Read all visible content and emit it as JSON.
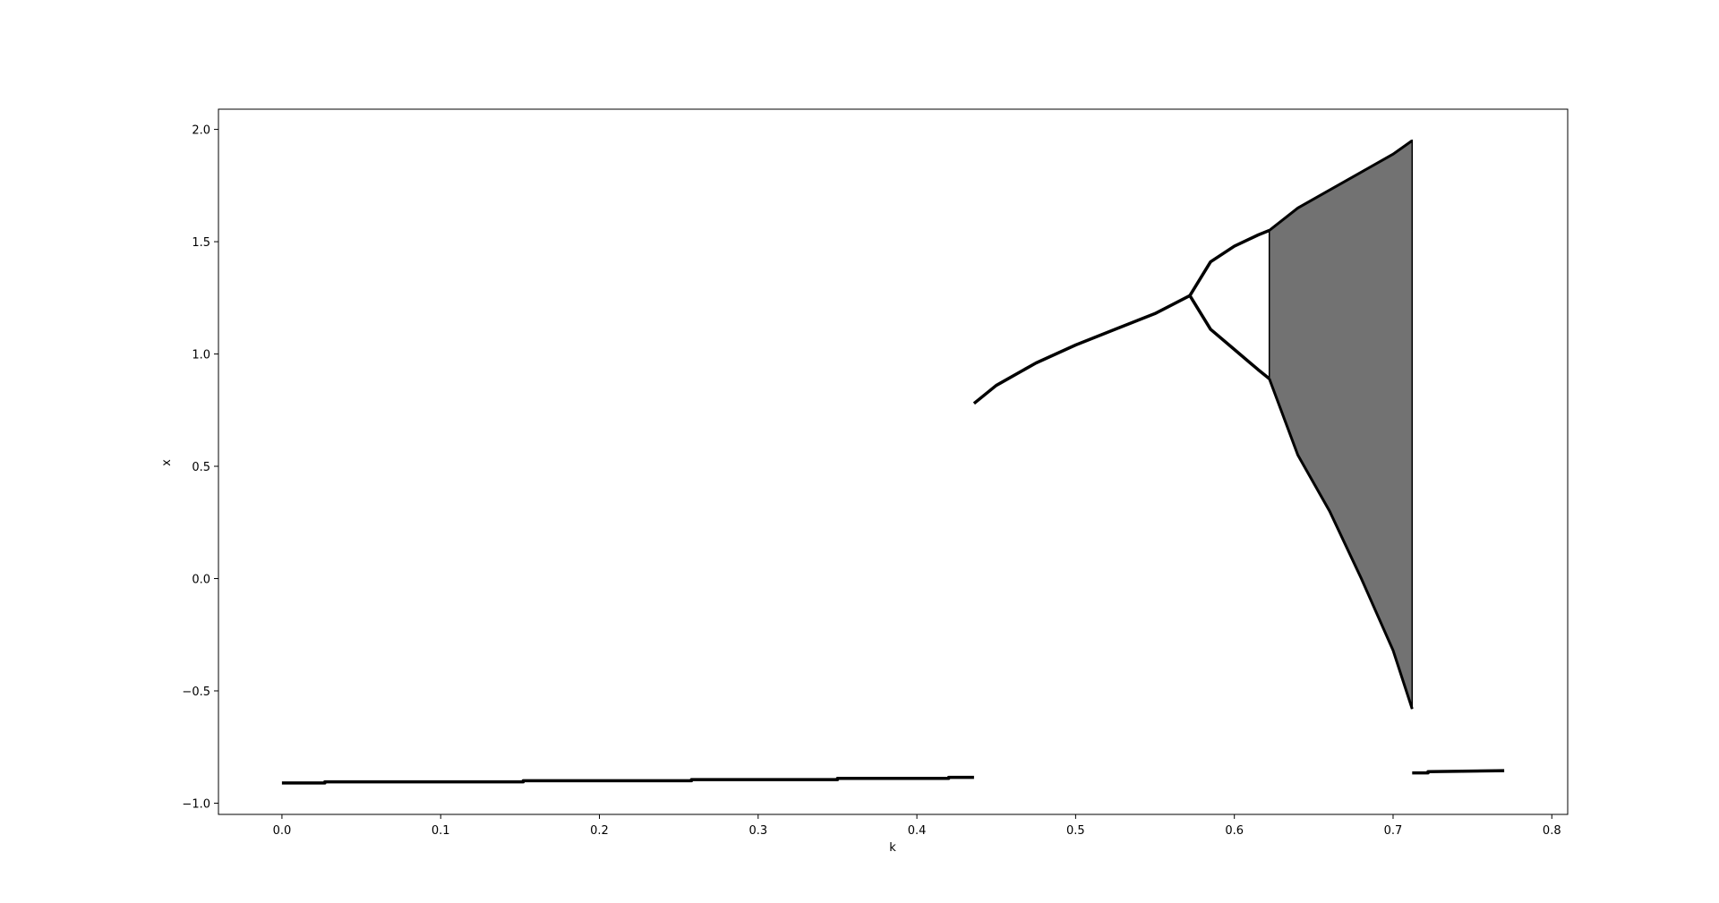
{
  "chart_data": {
    "type": "scatter",
    "title": "",
    "xlabel": "k",
    "ylabel": "x",
    "xlim": [
      -0.04,
      0.81
    ],
    "ylim": [
      -1.05,
      2.09
    ],
    "grid": false,
    "legend": "none",
    "marker_color": "#000000",
    "x_ticks": [
      0.0,
      0.1,
      0.2,
      0.3,
      0.4,
      0.5,
      0.6,
      0.7,
      0.8
    ],
    "x_tick_labels": [
      "0.0",
      "0.1",
      "0.2",
      "0.3",
      "0.4",
      "0.5",
      "0.6",
      "0.7",
      "0.8"
    ],
    "y_ticks": [
      -1.0,
      -0.5,
      0.0,
      0.5,
      1.0,
      1.5,
      2.0
    ],
    "y_tick_labels": [
      "−1.0",
      "−0.5",
      "0.0",
      "0.5",
      "1.0",
      "1.5",
      "2.0"
    ],
    "series": [
      {
        "description_of_regime": "low fixed point",
        "x": [
          0.0,
          0.027,
          0.027,
          0.1,
          0.152,
          0.152,
          0.2,
          0.258,
          0.258,
          0.3,
          0.35,
          0.35,
          0.4,
          0.42,
          0.42,
          0.436
        ],
        "y": [
          -0.91,
          -0.91,
          -0.905,
          -0.905,
          -0.905,
          -0.9,
          -0.9,
          -0.9,
          -0.895,
          -0.895,
          -0.895,
          -0.89,
          -0.89,
          -0.89,
          -0.885,
          -0.885
        ]
      },
      {
        "description_of_regime": "upper fixed point",
        "x": [
          0.436,
          0.45,
          0.475,
          0.5,
          0.525,
          0.55,
          0.572
        ],
        "y": [
          0.78,
          0.86,
          0.96,
          1.04,
          1.11,
          1.18,
          1.26
        ]
      },
      {
        "description_of_regime": "period-2 upper branch",
        "x": [
          0.572,
          0.585,
          0.6,
          0.615,
          0.622
        ],
        "y": [
          1.26,
          1.41,
          1.48,
          1.53,
          1.55
        ]
      },
      {
        "description_of_regime": "period-2 lower branch",
        "x": [
          0.572,
          0.585,
          0.6,
          0.615,
          0.622
        ],
        "y": [
          1.26,
          1.11,
          1.02,
          0.93,
          0.89
        ]
      },
      {
        "description_of_regime": "chaotic band upper envelope",
        "x": [
          0.622,
          0.64,
          0.66,
          0.68,
          0.7,
          0.712
        ],
        "y": [
          1.55,
          1.65,
          1.73,
          1.81,
          1.89,
          1.95
        ]
      },
      {
        "description_of_regime": "chaotic band lower envelope",
        "x": [
          0.622,
          0.64,
          0.66,
          0.68,
          0.7,
          0.712
        ],
        "y": [
          0.89,
          0.55,
          0.3,
          0.0,
          -0.32,
          -0.58
        ]
      },
      {
        "description_of_regime": "high fixed point",
        "x": [
          0.712,
          0.722,
          0.722,
          0.77
        ],
        "y": [
          -0.865,
          -0.865,
          -0.86,
          -0.855
        ]
      }
    ]
  }
}
